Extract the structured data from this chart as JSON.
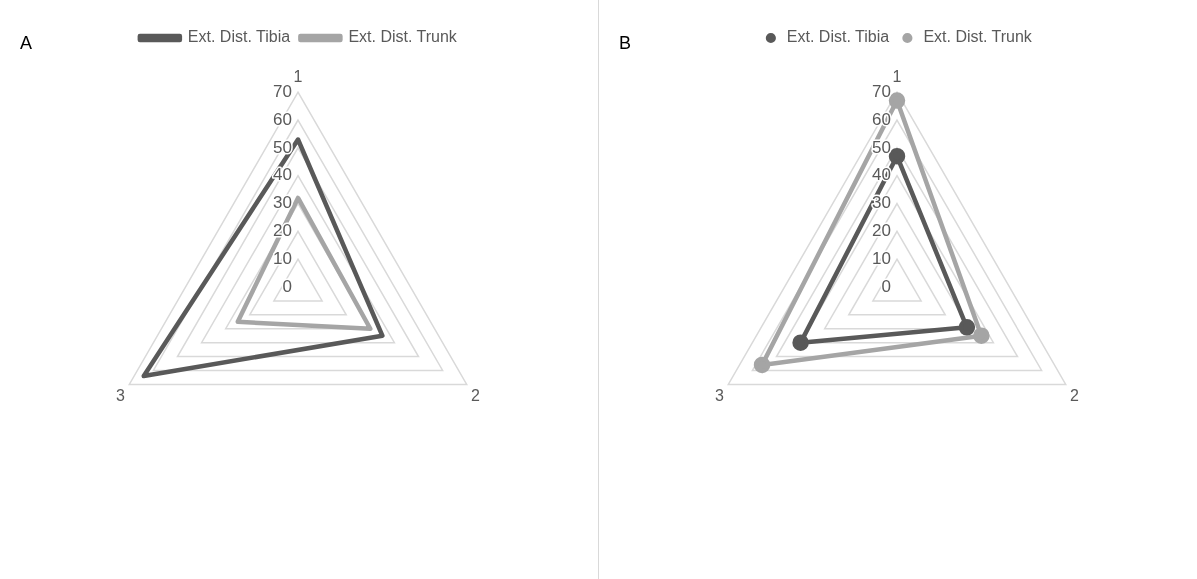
{
  "chart_data": [
    {
      "type": "radar",
      "categories": [
        "1",
        "2",
        "3"
      ],
      "series": [
        {
          "name": "Ext. Dist. Tibia",
          "color": "#595959",
          "values": [
            53,
            35,
            64
          ]
        },
        {
          "name": "Ext. Dist. Trunk",
          "color": "#a5a5a5",
          "values": [
            32,
            30,
            25
          ]
        }
      ],
      "ylim": [
        0,
        70
      ],
      "yticks": [
        0,
        10,
        20,
        30,
        40,
        50,
        60,
        70
      ],
      "grid": true,
      "legend": "top",
      "marker": "none",
      "annotations": [
        "A"
      ]
    },
    {
      "type": "radar",
      "categories": [
        "1",
        "2",
        "3"
      ],
      "series": [
        {
          "name": "Ext. Dist. Tibia",
          "color": "#595959",
          "values": [
            47,
            29,
            40
          ]
        },
        {
          "name": "Ext. Dist. Trunk",
          "color": "#a5a5a5",
          "values": [
            67,
            35,
            56
          ]
        }
      ],
      "ylim": [
        0,
        70
      ],
      "yticks": [
        0,
        10,
        20,
        30,
        40,
        50,
        60,
        70
      ],
      "grid": true,
      "legend": "top",
      "marker": "circle",
      "annotations": [
        "B"
      ]
    }
  ]
}
